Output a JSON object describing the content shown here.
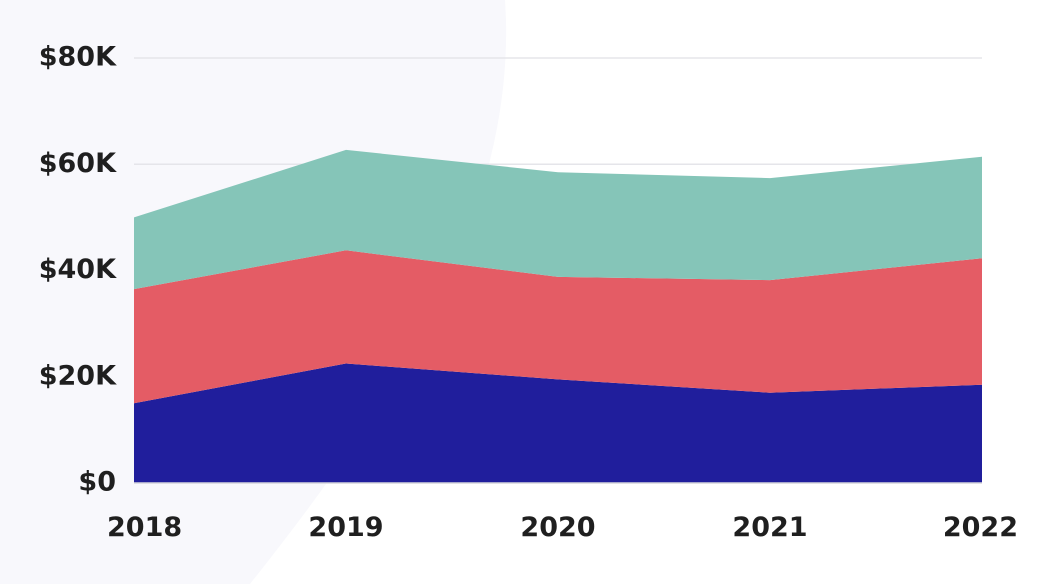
{
  "chart_data": {
    "type": "area",
    "stacked": true,
    "x": [
      2018,
      2019,
      2020,
      2021,
      2022
    ],
    "xticks": [
      "2018",
      "2019",
      "2020",
      "2021",
      "2022"
    ],
    "yticks": [
      {
        "value": 0,
        "label": "$0"
      },
      {
        "value": 20000,
        "label": "$20K"
      },
      {
        "value": 40000,
        "label": "$40K"
      },
      {
        "value": 60000,
        "label": "$60K"
      },
      {
        "value": 80000,
        "label": "$80K"
      }
    ],
    "ylim": [
      0,
      80000
    ],
    "grid": true,
    "legend": "none",
    "series": [
      {
        "color": "#201e9c",
        "values": [
          15000,
          22500,
          19500,
          17000,
          18500
        ]
      },
      {
        "color": "#e45c65",
        "values": [
          21500,
          21300,
          19300,
          21200,
          23800
        ]
      },
      {
        "color": "#85c5b8",
        "values": [
          13500,
          18900,
          19700,
          19200,
          19100
        ]
      }
    ]
  },
  "background": {
    "color": "#ffffff",
    "shape_color": "#f8f8fc"
  }
}
